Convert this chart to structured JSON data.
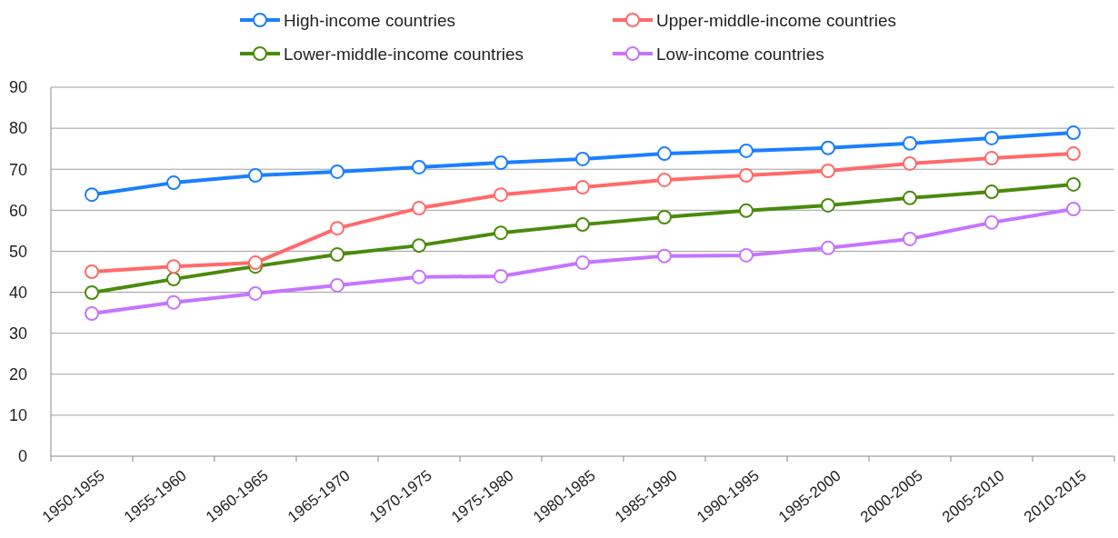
{
  "chart_data": {
    "type": "line",
    "categories": [
      "1950-1955",
      "1955-1960",
      "1960-1965",
      "1965-1970",
      "1970-1975",
      "1975-1980",
      "1980-1985",
      "1985-1990",
      "1990-1995",
      "1995-2000",
      "2000-2005",
      "2005-2010",
      "2010-2015"
    ],
    "series": [
      {
        "name": "High-income countries",
        "color": "#1a7fff",
        "values": [
          63.8,
          66.7,
          68.5,
          69.4,
          70.5,
          71.6,
          72.5,
          73.8,
          74.5,
          75.2,
          76.3,
          77.6,
          78.9
        ]
      },
      {
        "name": "Upper-middle-income countries",
        "color": "#ff6a6a",
        "values": [
          45.0,
          46.3,
          47.2,
          55.6,
          60.5,
          63.8,
          65.6,
          67.4,
          68.5,
          69.6,
          71.4,
          72.7,
          73.8
        ]
      },
      {
        "name": "Lower-middle-income countries",
        "color": "#4a8a0c",
        "values": [
          39.9,
          43.2,
          46.3,
          49.2,
          51.4,
          54.5,
          56.5,
          58.3,
          59.9,
          61.2,
          63.0,
          64.5,
          66.3
        ]
      },
      {
        "name": "Low-income countries",
        "color": "#c574ff",
        "values": [
          34.8,
          37.5,
          39.7,
          41.7,
          43.7,
          43.9,
          47.2,
          48.8,
          49.0,
          50.8,
          53.0,
          57.0,
          60.3
        ]
      }
    ],
    "ylim": [
      0,
      90
    ],
    "yticks": [
      0,
      10,
      20,
      30,
      40,
      50,
      60,
      70,
      80,
      90
    ],
    "grid": "y",
    "legend": "top",
    "marker": "circle",
    "line_style": "solid"
  }
}
